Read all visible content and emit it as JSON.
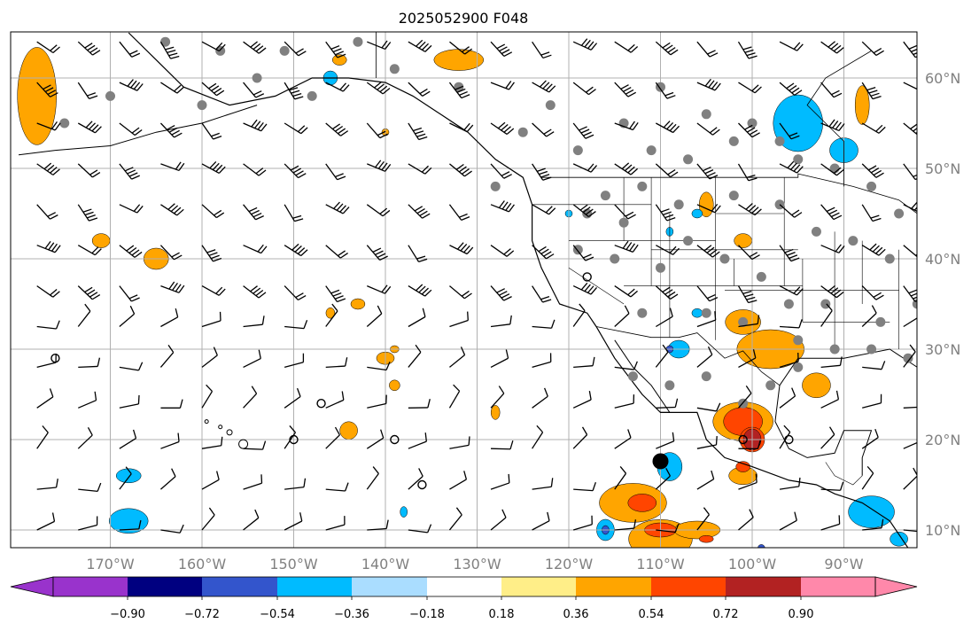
{
  "title": "2025052900 F048",
  "map": {
    "lon_range": [
      -180,
      -80
    ],
    "lat_range": [
      8,
      65
    ],
    "lon_ticks": [
      {
        "value": -170,
        "label": "170°W"
      },
      {
        "value": -160,
        "label": "160°W"
      },
      {
        "value": -150,
        "label": "150°W"
      },
      {
        "value": -140,
        "label": "140°W"
      },
      {
        "value": -130,
        "label": "130°W"
      },
      {
        "value": -120,
        "label": "120°W"
      },
      {
        "value": -110,
        "label": "110°W"
      },
      {
        "value": -100,
        "label": "100°W"
      },
      {
        "value": -90,
        "label": "90°W"
      }
    ],
    "lat_ticks": [
      {
        "value": 60,
        "label": "60°N"
      },
      {
        "value": 50,
        "label": "50°N"
      },
      {
        "value": 40,
        "label": "40°N"
      },
      {
        "value": 30,
        "label": "30°N"
      },
      {
        "value": 20,
        "label": "20°N"
      },
      {
        "value": 10,
        "label": "10°N"
      }
    ],
    "grid": true,
    "colors": {
      "land_outline": "#000000",
      "grid": "#b0b0b0",
      "station_marker": "#808080",
      "barb": "#000000"
    }
  },
  "colorbar": {
    "orientation": "horizontal",
    "extend": "both",
    "colors": [
      "#9933cc",
      "#000080",
      "#3355cc",
      "#00bbff",
      "#aaddff",
      "#ffffff",
      "#ffee88",
      "#ffa500",
      "#ff4500",
      "#b22222",
      "#ff88aa"
    ],
    "tick_labels": [
      "−0.90",
      "−0.72",
      "−0.54",
      "−0.36",
      "−0.18",
      "0.18",
      "0.36",
      "0.54",
      "0.72",
      "0.90"
    ]
  },
  "features": {
    "orange_areas": [
      {
        "lon": -100,
        "lat": 21,
        "name": "mexico-plateau"
      },
      {
        "lon": -112,
        "lat": 11,
        "name": "east-pacific"
      },
      {
        "lon": -98,
        "lat": 30,
        "name": "texas"
      }
    ],
    "blue_areas": [
      {
        "lon": -95,
        "lat": 56,
        "name": "hudson-region"
      },
      {
        "lon": -85,
        "lat": 13,
        "name": "central-america"
      }
    ]
  }
}
